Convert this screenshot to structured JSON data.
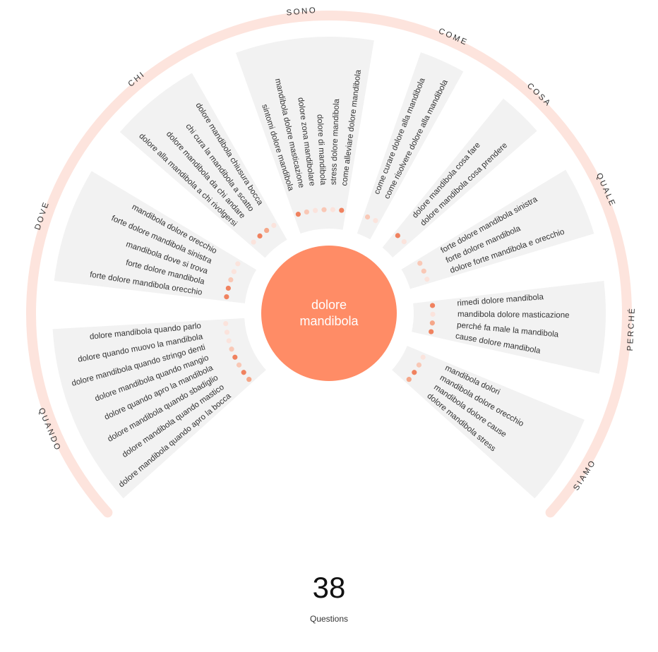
{
  "center": {
    "line1": "dolore",
    "line2": "mandibola"
  },
  "footer": {
    "count": "38",
    "label": "Questions"
  },
  "colors": {
    "accent": "#ff8c66",
    "ring": "#fde4dd",
    "sector_bg": "#f2f2f2",
    "text": "#333333"
  },
  "categories": [
    {
      "label": "QUANDO",
      "questions": [
        {
          "text": "dolore mandibola quando apro la bocca",
          "strength": 3
        },
        {
          "text": "dolore mandibola quando mastico",
          "strength": 4
        },
        {
          "text": "dolore mandibola quando sbadiglio",
          "strength": 2
        },
        {
          "text": "dolore quando apro la mandibola",
          "strength": 4
        },
        {
          "text": "dolore mandibola quando mangio",
          "strength": 2
        },
        {
          "text": "dolore mandibola quando stringo denti",
          "strength": 1
        },
        {
          "text": "dolore quando muovo la mandibola",
          "strength": 1
        },
        {
          "text": "dolore mandibola quando parlo",
          "strength": 1
        }
      ]
    },
    {
      "label": "DOVE",
      "questions": [
        {
          "text": "forte dolore mandibola orecchio",
          "strength": 4
        },
        {
          "text": "forte dolore mandibola",
          "strength": 4
        },
        {
          "text": "mandibola dove si trova",
          "strength": 2
        },
        {
          "text": "forte dolore mandibola sinistra",
          "strength": 1
        },
        {
          "text": "mandibola dolore orecchio",
          "strength": 1
        }
      ]
    },
    {
      "label": "CHI",
      "questions": [
        {
          "text": "dolore alla mandibola a chi rivolgersi",
          "strength": 1
        },
        {
          "text": "dolore mandibola da chi andare",
          "strength": 4
        },
        {
          "text": "chi cura la mandibola a scatto",
          "strength": 3
        },
        {
          "text": "dolore mandibola chiusura bocca",
          "strength": 1
        }
      ]
    },
    {
      "label": "SONO",
      "questions": [
        {
          "text": "sintomi dolore mandibola",
          "strength": 4
        },
        {
          "text": "mandibola dolore masticazione",
          "strength": 2
        },
        {
          "text": "dolore zona mandibolare",
          "strength": 1
        },
        {
          "text": "dolore di mandibola",
          "strength": 2
        },
        {
          "text": "stress dolore mandibola",
          "strength": 1
        },
        {
          "text": "come alleviare dolore mandibola",
          "strength": 4
        }
      ]
    },
    {
      "label": "COME",
      "questions": [
        {
          "text": "come curare dolore alla mandibola",
          "strength": 2
        },
        {
          "text": "come risolvere dolore alla mandibola",
          "strength": 1
        }
      ]
    },
    {
      "label": "COSA",
      "questions": [
        {
          "text": "dolore mandibola cosa fare",
          "strength": 4
        },
        {
          "text": "dolore mandibola cosa prendere",
          "strength": 1
        }
      ]
    },
    {
      "label": "QUALE",
      "questions": [
        {
          "text": "forte dolore mandibola sinistra",
          "strength": 2
        },
        {
          "text": "forte dolore mandibola",
          "strength": 2
        },
        {
          "text": "dolore forte mandibola e orecchio",
          "strength": 1
        }
      ]
    },
    {
      "label": "PERCHÉ",
      "questions": [
        {
          "text": "rimedi dolore mandibola",
          "strength": 4
        },
        {
          "text": "mandibola dolore masticazione",
          "strength": 1
        },
        {
          "text": "perché fa male la mandibola",
          "strength": 3
        },
        {
          "text": "cause dolore mandibola",
          "strength": 4
        }
      ]
    },
    {
      "label": "SIAMO",
      "questions": [
        {
          "text": "mandibola dolori",
          "strength": 1
        },
        {
          "text": "mandibola dolore orecchio",
          "strength": 2
        },
        {
          "text": "mandibola dolore cause",
          "strength": 4
        },
        {
          "text": "dolore mandibola stress",
          "strength": 3
        }
      ]
    }
  ]
}
